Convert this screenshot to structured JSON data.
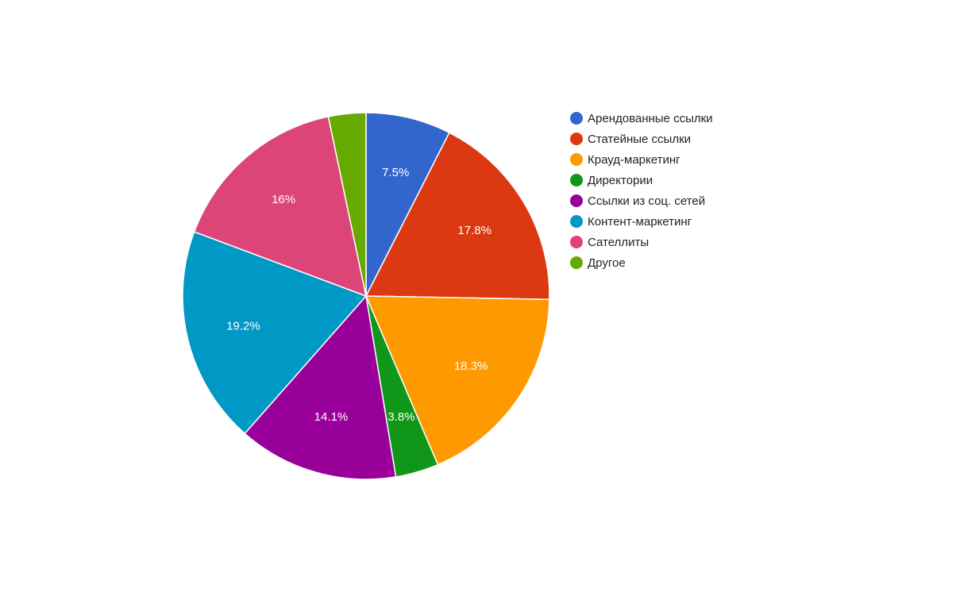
{
  "chart_data": {
    "type": "pie",
    "title": "",
    "legend_position": "right",
    "slices": [
      {
        "label": "Арендованные ссылки",
        "value": 7.5,
        "display": "7.5%",
        "color": "#3366cc"
      },
      {
        "label": "Статейные ссылки",
        "value": 17.8,
        "display": "17.8%",
        "color": "#dc3912"
      },
      {
        "label": "Крауд-маркетинг",
        "value": 18.3,
        "display": "18.3%",
        "color": "#ff9900"
      },
      {
        "label": "Директории",
        "value": 3.8,
        "display": "3.8%",
        "color": "#109618"
      },
      {
        "label": "Ссылки из соц. сетей",
        "value": 14.1,
        "display": "14.1%",
        "color": "#990099"
      },
      {
        "label": "Контент-маркетинг",
        "value": 19.2,
        "display": "19.2%",
        "color": "#0099c6"
      },
      {
        "label": "Сателлиты",
        "value": 16.0,
        "display": "16%",
        "color": "#dd4477"
      },
      {
        "label": "Другое",
        "value": 3.3,
        "display": "",
        "color": "#66aa00"
      }
    ]
  }
}
